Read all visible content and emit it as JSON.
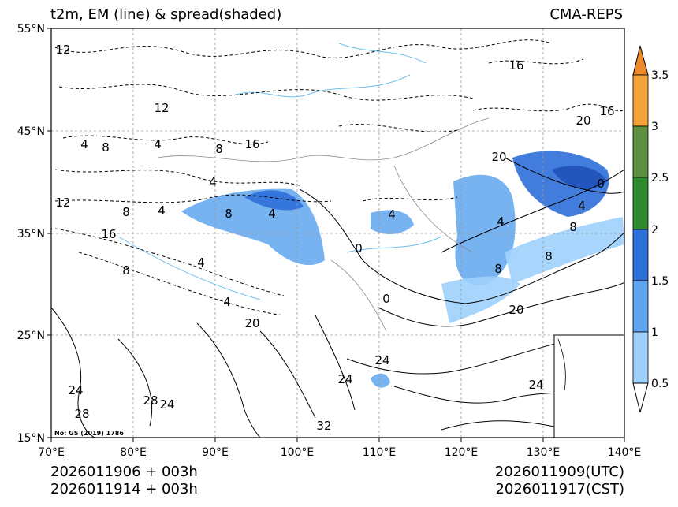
{
  "header": {
    "title": "t2m, EM (line) & spread(shaded)",
    "model": "CMA-REPS"
  },
  "footer": {
    "init_utc": "2026011906  +  003h",
    "init_cst": "2026011914  +  003h",
    "valid_utc": "2026011909(UTC)",
    "valid_cst": "2026011917(CST)"
  },
  "map": {
    "credit": "No: GS (2019) 1786",
    "lat_labels": [
      "55°N",
      "45°N",
      "35°N",
      "25°N",
      "15°N"
    ],
    "lon_labels": [
      "70°E",
      "80°E",
      "90°E",
      "100°E",
      "110°E",
      "120°E",
      "130°E",
      "140°E"
    ],
    "contour_labels": [
      "12",
      "12",
      "4",
      "8",
      "4",
      "8",
      "16",
      "16",
      "20",
      "16",
      "8",
      "4",
      "4",
      "8",
      "4",
      "12",
      "16",
      "0",
      "4",
      "4",
      "8",
      "4",
      "4",
      "8",
      "0",
      "8",
      "20",
      "24",
      "24",
      "28",
      "24",
      "28",
      "32",
      "24",
      "20",
      "0",
      "4",
      "8",
      "20",
      "24"
    ]
  },
  "colorbar": {
    "levels": [
      "0.5",
      "1",
      "1.5",
      "2",
      "2.5",
      "3",
      "3.5"
    ],
    "colors": [
      "#9fd0fb",
      "#5fa4ef",
      "#2d6fd9",
      "#2f8a2e",
      "#5c8f3f",
      "#f3a33a",
      "#ef8a2a"
    ]
  }
}
